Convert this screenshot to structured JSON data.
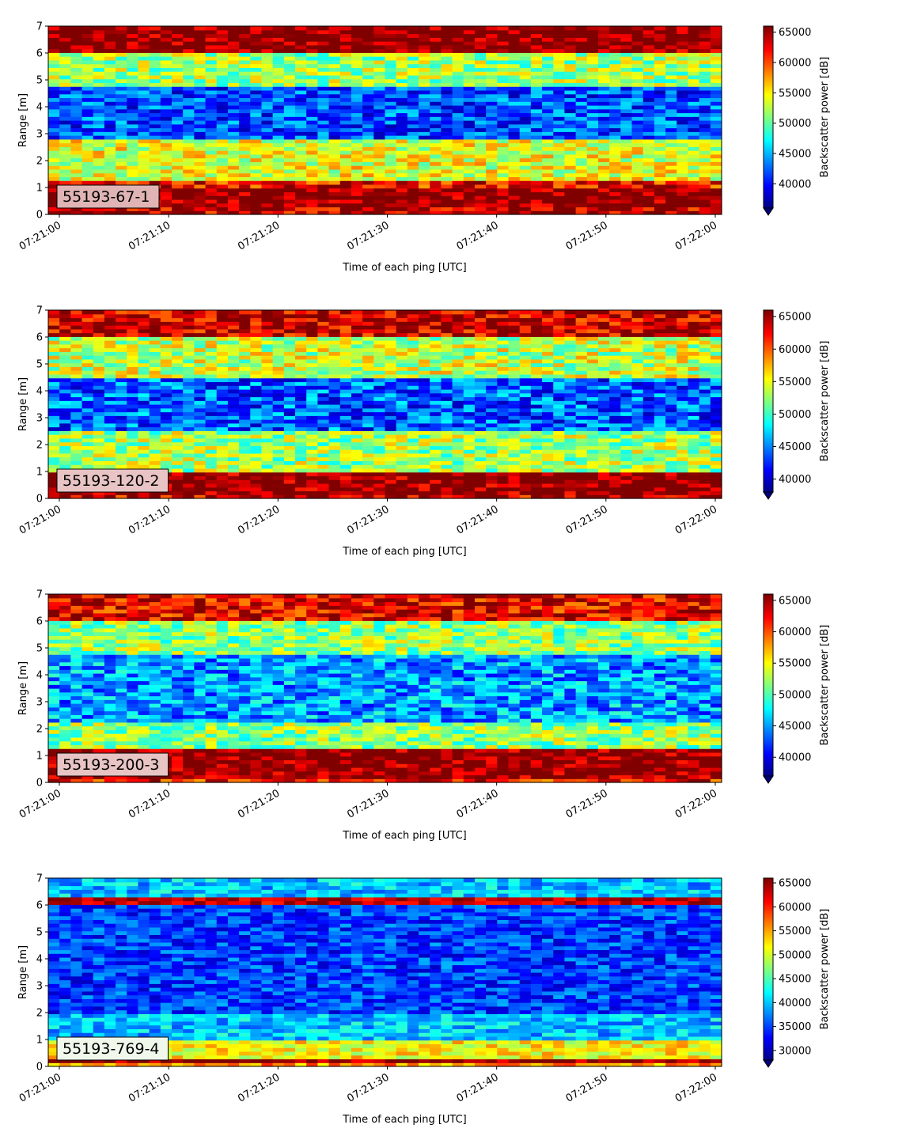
{
  "chart_data": [
    {
      "type": "heatmap",
      "annotation": "55193-67-1",
      "annotation_bg": "#e0b4b4",
      "xlabel": "Time of each ping [UTC]",
      "ylabel": "Range [m]",
      "colorbar_label": "Backscatter power [dB]",
      "x_ticks": [
        "07:21:00",
        "07:21:10",
        "07:21:20",
        "07:21:30",
        "07:21:40",
        "07:21:50",
        "07:22:00"
      ],
      "y_ticks": [
        0,
        1,
        2,
        3,
        4,
        5,
        6,
        7
      ],
      "ylim": [
        0,
        7
      ],
      "clim": [
        36000,
        66000
      ],
      "colorbar_ticks": [
        40000,
        45000,
        50000,
        55000,
        60000,
        65000
      ],
      "colormap": "jet",
      "colorbar_extend": "min",
      "bands": [
        {
          "range": [
            0.0,
            0.25
          ],
          "value": 64000
        },
        {
          "range": [
            0.25,
            1.0
          ],
          "value": 66000
        },
        {
          "range": [
            1.0,
            1.2
          ],
          "value": 62000
        },
        {
          "range": [
            1.2,
            2.8
          ],
          "value": 54000
        },
        {
          "range": [
            2.8,
            4.8
          ],
          "value": 42000
        },
        {
          "range": [
            4.8,
            6.0
          ],
          "value": 52000
        },
        {
          "range": [
            6.0,
            7.0
          ],
          "value": 66000
        }
      ]
    },
    {
      "type": "heatmap",
      "annotation": "55193-120-2",
      "annotation_bg": "#e8c4c4",
      "xlabel": "Time of each ping [UTC]",
      "ylabel": "Range [m]",
      "colorbar_label": "Backscatter power [dB]",
      "x_ticks": [
        "07:21:00",
        "07:21:10",
        "07:21:20",
        "07:21:30",
        "07:21:40",
        "07:21:50",
        "07:22:00"
      ],
      "y_ticks": [
        0,
        1,
        2,
        3,
        4,
        5,
        6,
        7
      ],
      "ylim": [
        0,
        7
      ],
      "clim": [
        38000,
        66000
      ],
      "colorbar_ticks": [
        40000,
        45000,
        50000,
        55000,
        60000,
        65000
      ],
      "colormap": "jet",
      "colorbar_extend": "min",
      "bands": [
        {
          "range": [
            0.0,
            0.15
          ],
          "value": 64000
        },
        {
          "range": [
            0.15,
            1.0
          ],
          "value": 66000
        },
        {
          "range": [
            1.0,
            2.5
          ],
          "value": 53000
        },
        {
          "range": [
            2.5,
            4.5
          ],
          "value": 44000
        },
        {
          "range": [
            4.5,
            6.0
          ],
          "value": 54000
        },
        {
          "range": [
            6.0,
            7.0
          ],
          "value": 64000
        }
      ]
    },
    {
      "type": "heatmap",
      "annotation": "55193-200-3",
      "annotation_bg": "#e8c4c4",
      "xlabel": "Time of each ping [UTC]",
      "ylabel": "Range [m]",
      "colorbar_label": "Backscatter power [dB]",
      "x_ticks": [
        "07:21:00",
        "07:21:10",
        "07:21:20",
        "07:21:30",
        "07:21:40",
        "07:21:50",
        "07:22:00"
      ],
      "y_ticks": [
        0,
        1,
        2,
        3,
        4,
        5,
        6,
        7
      ],
      "ylim": [
        0,
        7
      ],
      "clim": [
        37000,
        66000
      ],
      "colorbar_ticks": [
        40000,
        45000,
        50000,
        55000,
        60000,
        65000
      ],
      "colormap": "jet",
      "colorbar_extend": "min",
      "bands": [
        {
          "range": [
            0.0,
            0.15
          ],
          "value": 62000
        },
        {
          "range": [
            0.15,
            1.2
          ],
          "value": 66000
        },
        {
          "range": [
            1.2,
            2.2
          ],
          "value": 52000
        },
        {
          "range": [
            2.2,
            4.8
          ],
          "value": 45000
        },
        {
          "range": [
            4.8,
            6.0
          ],
          "value": 52000
        },
        {
          "range": [
            6.0,
            7.0
          ],
          "value": 63000
        }
      ]
    },
    {
      "type": "heatmap",
      "annotation": "55193-769-4",
      "annotation_bg": "#f0f8ec",
      "xlabel": "Time of each ping [UTC]",
      "ylabel": "Range [m]",
      "colorbar_label": "Backscatter power [dB]",
      "x_ticks": [
        "07:21:00",
        "07:21:10",
        "07:21:20",
        "07:21:30",
        "07:21:40",
        "07:21:50",
        "07:22:00"
      ],
      "y_ticks": [
        0,
        1,
        2,
        3,
        4,
        5,
        6,
        7
      ],
      "ylim": [
        0,
        7
      ],
      "clim": [
        28000,
        66000
      ],
      "colorbar_ticks": [
        30000,
        35000,
        40000,
        45000,
        50000,
        55000,
        60000,
        65000
      ],
      "colormap": "jet",
      "colorbar_extend": "min",
      "bands": [
        {
          "range": [
            0.0,
            0.15
          ],
          "value": 56000
        },
        {
          "range": [
            0.15,
            0.3
          ],
          "value": 66000
        },
        {
          "range": [
            0.3,
            1.0
          ],
          "value": 52000
        },
        {
          "range": [
            1.0,
            2.0
          ],
          "value": 40000
        },
        {
          "range": [
            2.0,
            6.0
          ],
          "value": 35000
        },
        {
          "range": [
            6.0,
            6.3
          ],
          "value": 64000
        },
        {
          "range": [
            6.3,
            7.0
          ],
          "value": 40000
        }
      ]
    }
  ]
}
